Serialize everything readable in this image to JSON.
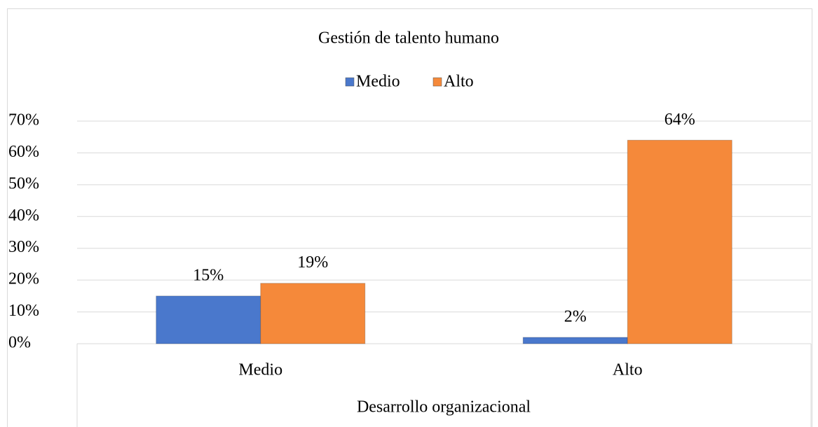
{
  "chart_data": {
    "type": "bar",
    "title": "Gestión de talento humano",
    "x_label": "Desarrollo organizacional",
    "categories": [
      "Medio",
      "Alto"
    ],
    "series": [
      {
        "name": "Medio",
        "color": "#4a78cc",
        "values": [
          15,
          2
        ],
        "value_labels": [
          "15%",
          "2%"
        ]
      },
      {
        "name": "Alto",
        "color": "#f5893a",
        "values": [
          19,
          64
        ],
        "value_labels": [
          "19%",
          "64%"
        ]
      }
    ],
    "ylim": [
      0,
      70
    ],
    "yticks": [
      {
        "value": 0,
        "label": "0%"
      },
      {
        "value": 10,
        "label": "10%"
      },
      {
        "value": 20,
        "label": "20%"
      },
      {
        "value": 30,
        "label": "30%"
      },
      {
        "value": 40,
        "label": "40%"
      },
      {
        "value": 50,
        "label": "50%"
      },
      {
        "value": 60,
        "label": "60%"
      },
      {
        "value": 70,
        "label": "70%"
      }
    ],
    "grid": true,
    "legend": "top"
  }
}
